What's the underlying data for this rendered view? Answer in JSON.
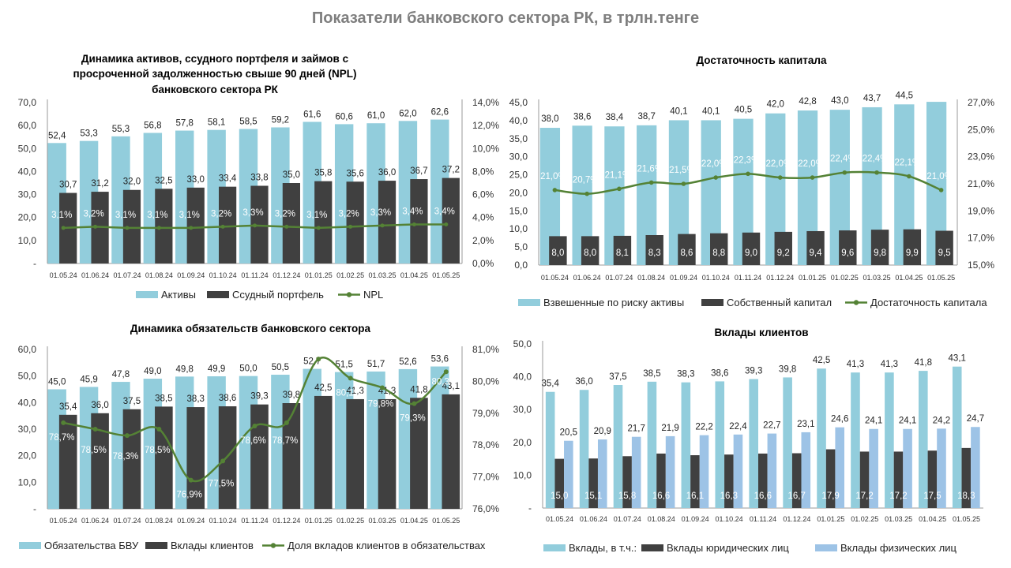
{
  "page_title": "Показатели банковского сектора РК, в трлн.тенге",
  "colors": {
    "light": "#92cddc",
    "dark": "#404040",
    "line": "#548235",
    "lightblue": "#9dc3e6"
  },
  "chart_data": [
    {
      "id": "assets",
      "type": "bar",
      "title": [
        "Динамика  активов, ссудного портфеля и займов с",
        "просроченной  задолженностью свыше 90  дней (NPL)",
        "банковского  сектора РК"
      ],
      "categories": [
        "01.05.24",
        "01.06.24",
        "01.07.24",
        "01.08.24",
        "01.09.24",
        "01.10.24",
        "01.11.24",
        "01.12.24",
        "01.01.25",
        "01.02.25",
        "01.03.25",
        "01.04.25",
        "01.05.25"
      ],
      "ylim": [
        0,
        70
      ],
      "y_ticks": [
        "-",
        "10,0",
        "20,0",
        "30,0",
        "40,0",
        "50,0",
        "60,0",
        "70,0"
      ],
      "y2lim": [
        0,
        14
      ],
      "y2_ticks": [
        "0,0%",
        "2,0%",
        "4,0%",
        "6,0%",
        "8,0%",
        "10,0%",
        "12,0%",
        "14,0%"
      ],
      "series": [
        {
          "name": "Активы",
          "values": [
            52.4,
            53.3,
            55.3,
            56.8,
            57.8,
            58.1,
            58.5,
            59.2,
            61.6,
            60.6,
            61.0,
            62.0,
            62.6
          ],
          "labels": [
            "52,4",
            "53,3",
            "55,3",
            "56,8",
            "57,8",
            "58,1",
            "58,5",
            "59,2",
            "61,6",
            "60,6",
            "61,0",
            "62,0",
            "62,6"
          ]
        },
        {
          "name": "Ссудный портфель",
          "values": [
            30.7,
            31.2,
            32.0,
            32.5,
            33.0,
            33.4,
            33.8,
            35.0,
            35.8,
            35.6,
            36.0,
            36.7,
            37.2
          ],
          "labels": [
            "30,7",
            "31,2",
            "32,0",
            "32,5",
            "33,0",
            "33,4",
            "33,8",
            "35,0",
            "35,8",
            "35,6",
            "36,0",
            "36,7",
            "37,2"
          ]
        },
        {
          "name": "NPL",
          "axis": "secondary",
          "values": [
            3.1,
            3.2,
            3.1,
            3.1,
            3.1,
            3.2,
            3.3,
            3.2,
            3.1,
            3.2,
            3.3,
            3.4,
            3.4
          ],
          "labels": [
            "3,1%",
            "3,2%",
            "3,1%",
            "3,1%",
            "3,1%",
            "3,2%",
            "3,3%",
            "3,2%",
            "3,1%",
            "3,2%",
            "3,3%",
            "3,4%",
            "3,4%"
          ]
        }
      ],
      "legend": [
        "Активы",
        "Ссудный портфель",
        "NPL"
      ]
    },
    {
      "id": "capital",
      "type": "bar",
      "title": [
        "Достаточность  капитала"
      ],
      "categories": [
        "01.05.24",
        "01.06.24",
        "01.07.24",
        "01.08.24",
        "01.09.24",
        "01.10.24",
        "01.11.24",
        "01.12.24",
        "01.01.25",
        "01.02.25",
        "01.03.25",
        "01.04.25",
        "01.05.25"
      ],
      "ylim": [
        0,
        45
      ],
      "y_ticks": [
        "0,0",
        "5,0",
        "10,0",
        "15,0",
        "20,0",
        "25,0",
        "30,0",
        "35,0",
        "40,0",
        "45,0"
      ],
      "y2lim": [
        15,
        28
      ],
      "y2_ticks": [
        "15,0%",
        "17,0%",
        "19,0%",
        "21,0%",
        "23,0%",
        "25,0%",
        "27,0%"
      ],
      "series": [
        {
          "name": "Взвешенные по риску активы",
          "values": [
            38.0,
            38.6,
            38.4,
            38.7,
            40.1,
            40.1,
            40.5,
            42.0,
            42.8,
            43.0,
            43.7,
            44.5,
            45.2
          ],
          "labels": [
            "38,0",
            "38,6",
            "38,4",
            "38,7",
            "40,1",
            "40,1",
            "40,5",
            "42,0",
            "42,8",
            "43,0",
            "43,7",
            "44,5",
            ""
          ]
        },
        {
          "name": "Собственный капитал",
          "values": [
            8.0,
            8.0,
            8.1,
            8.3,
            8.6,
            8.8,
            9.0,
            9.2,
            9.4,
            9.6,
            9.8,
            9.9,
            9.5
          ],
          "labels": [
            "8,0",
            "8,0",
            "8,1",
            "8,3",
            "8,6",
            "8,8",
            "9,0",
            "9,2",
            "9,4",
            "9,6",
            "9,8",
            "9,9",
            "9,5"
          ]
        },
        {
          "name": "Достаточность капитала",
          "axis": "secondary",
          "values": [
            21.0,
            20.7,
            21.1,
            21.6,
            21.5,
            22.0,
            22.3,
            22.0,
            22.0,
            22.4,
            22.4,
            22.1,
            21.0
          ],
          "labels": [
            "21,0%",
            "20,7%",
            "21,1%",
            "21,6%",
            "21,5%",
            "22,0%",
            "22,3%",
            "22,0%",
            "22,0%",
            "22,4%",
            "22,4%",
            "22,1%",
            "21,0%"
          ]
        }
      ],
      "legend": [
        "Взвешенные по риску активы",
        "Собственный капитал",
        "Достаточность капитала"
      ]
    },
    {
      "id": "liabilities",
      "type": "bar",
      "title": [
        "Динамика  обязательств банковского  сектора"
      ],
      "categories": [
        "01.05.24",
        "01.06.24",
        "01.07.24",
        "01.08.24",
        "01.09.24",
        "01.10.24",
        "01.11.24",
        "01.12.24",
        "01.01.25",
        "01.02.25",
        "01.03.25",
        "01.04.25",
        "01.05.25"
      ],
      "ylim": [
        0,
        60
      ],
      "y_ticks": [
        "-",
        "10,0",
        "20,0",
        "30,0",
        "40,0",
        "50,0",
        "60,0"
      ],
      "y2lim": [
        76,
        81
      ],
      "y2_ticks": [
        "76,0%",
        "77,0%",
        "78,0%",
        "79,0%",
        "80,0%",
        "81,0%"
      ],
      "series": [
        {
          "name": "Обязательства БВУ",
          "values": [
            45.0,
            45.9,
            47.8,
            49.0,
            49.8,
            49.9,
            50.0,
            50.5,
            52.7,
            51.5,
            51.7,
            52.6,
            53.6
          ],
          "labels": [
            "45,0",
            "45,9",
            "47,8",
            "49,0",
            "49,8",
            "49,9",
            "50,0",
            "50,5",
            "52,7",
            "51,5",
            "51,7",
            "52,6",
            "53,6"
          ]
        },
        {
          "name": "Вклады клиентов",
          "values": [
            35.4,
            36.0,
            37.5,
            38.5,
            38.3,
            38.6,
            39.3,
            39.8,
            42.5,
            41.3,
            41.3,
            41.8,
            43.1
          ],
          "labels": [
            "35,4",
            "36,0",
            "37,5",
            "38,5",
            "38,3",
            "38,6",
            "39,3",
            "39,8",
            "42,5",
            "41,3",
            "41,3",
            "41,8",
            "43,1"
          ]
        },
        {
          "name": "Доля вкладов клиентов в обязательствах",
          "axis": "secondary",
          "values": [
            78.7,
            78.5,
            78.3,
            78.5,
            76.9,
            77.5,
            78.6,
            78.7,
            80.7,
            80.1,
            79.8,
            79.3,
            80.3
          ],
          "labels": [
            "78,7%",
            "78,5%",
            "78,3%",
            "78,5%",
            "76,9%",
            "77,5%",
            "78,6%",
            "78,7%",
            "80,7%",
            "80,1%",
            "79,8%",
            "79,3%",
            "80,3%"
          ]
        }
      ],
      "legend": [
        "Обязательства БВУ",
        "Вклады клиентов",
        "Доля вкладов клиентов в обязательствах"
      ]
    },
    {
      "id": "deposits",
      "type": "bar",
      "title": [
        "Вклады клиентов"
      ],
      "categories": [
        "01.05.24",
        "01.06.24",
        "01.07.24",
        "01.08.24",
        "01.09.24",
        "01.10.24",
        "01.11.24",
        "01.12.24",
        "01.01.25",
        "01.02.25",
        "01.03.25",
        "01.04.25",
        "01.05.25"
      ],
      "ylim": [
        0,
        50
      ],
      "y_ticks": [
        "-",
        "10,0",
        "20,0",
        "30,0",
        "40,0",
        "50,0"
      ],
      "series": [
        {
          "name": "Вклады, в т.ч.:",
          "values": [
            35.4,
            36.0,
            37.5,
            38.5,
            38.3,
            38.6,
            39.3,
            39.8,
            42.5,
            41.3,
            41.3,
            41.8,
            43.1
          ],
          "labels": [
            "35,4",
            "36,0",
            "37,5",
            "38,5",
            "38,3",
            "38,6",
            "39,3",
            "39,8",
            "42,5",
            "41,3",
            "41,3",
            "41,8",
            "43,1"
          ]
        },
        {
          "name": "Вклады юридических лиц",
          "values": [
            15.0,
            15.1,
            15.8,
            16.6,
            16.1,
            16.3,
            16.6,
            16.7,
            17.9,
            17.2,
            17.2,
            17.5,
            18.3
          ],
          "labels": [
            "15,0",
            "15,1",
            "15,8",
            "16,6",
            "16,1",
            "16,3",
            "16,6",
            "16,7",
            "17,9",
            "17,2",
            "17,2",
            "17,5",
            "18,3"
          ]
        },
        {
          "name": "Вклады физических лиц",
          "values": [
            20.5,
            20.9,
            21.7,
            21.9,
            22.2,
            22.4,
            22.7,
            23.1,
            24.6,
            24.1,
            24.1,
            24.2,
            24.7
          ],
          "labels": [
            "20,5",
            "20,9",
            "21,7",
            "21,9",
            "22,2",
            "22,4",
            "22,7",
            "23,1",
            "24,6",
            "24,1",
            "24,1",
            "24,2",
            "24,7"
          ]
        }
      ],
      "legend": [
        "Вклады, в т.ч.:",
        "Вклады юридических лиц",
        "Вклады физических лиц"
      ]
    }
  ]
}
